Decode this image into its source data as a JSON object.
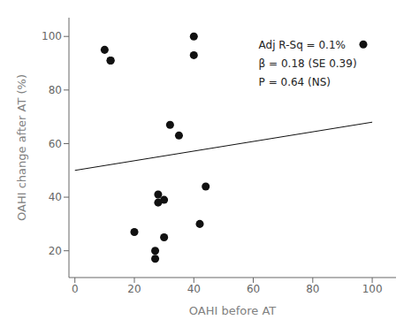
{
  "chart_data": {
    "type": "scatter",
    "xlabel": "OAHI before AT",
    "ylabel": "OAHI change after AT (%)",
    "xlim": [
      -2,
      108
    ],
    "ylim": [
      10,
      107
    ],
    "xticks": [
      0,
      20,
      40,
      60,
      80,
      100
    ],
    "yticks": [
      20,
      40,
      60,
      80,
      100
    ],
    "grid": false,
    "annotations": [
      "Adj R-Sq = 0.1%",
      "β = 0.18 (SE 0.39)",
      "P = 0.64 (NS)"
    ],
    "series": [
      {
        "type": "scatter",
        "color": "#111111",
        "x": [
          10,
          12,
          12,
          20,
          27,
          27,
          28,
          28,
          30,
          30,
          32,
          35,
          40,
          40,
          42,
          44,
          97
        ],
        "values": [
          95,
          91,
          91,
          27,
          20,
          17,
          41,
          38,
          39,
          25,
          67,
          63,
          100,
          93,
          30,
          44,
          97
        ]
      },
      {
        "type": "line",
        "color": "#111111",
        "x": [
          0,
          100
        ],
        "values": [
          50.0,
          68.0
        ]
      }
    ]
  }
}
